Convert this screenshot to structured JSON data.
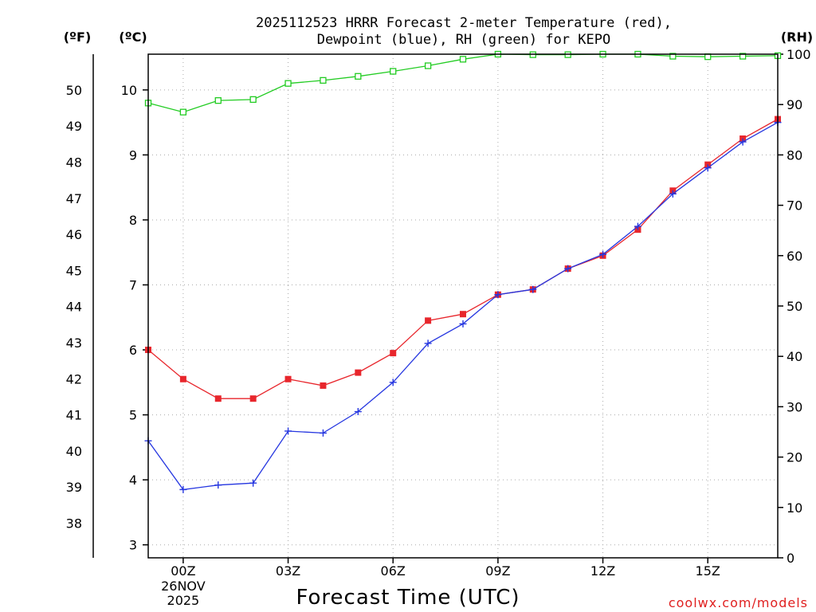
{
  "chart_data": {
    "type": "line",
    "title_line1": "2025112523 HRRR Forecast 2-meter Temperature (red),",
    "title_line2": "Dewpoint (blue), RH (green) for KEPO",
    "xlabel": "Forecast Time (UTC)",
    "watermark": "coolwx.com/models",
    "unit_f": "(ºF)",
    "unit_c": "(ºC)",
    "unit_rh": "(RH)",
    "hours": [
      -1,
      0,
      1,
      2,
      3,
      4,
      5,
      6,
      7,
      8,
      9,
      10,
      11,
      12,
      13,
      14,
      15,
      16,
      17
    ],
    "x_ticks": [
      {
        "hour": 0,
        "label": "00Z",
        "label2": "26NOV",
        "label3": "2025"
      },
      {
        "hour": 3,
        "label": "03Z"
      },
      {
        "hour": 6,
        "label": "06Z"
      },
      {
        "hour": 9,
        "label": "09Z"
      },
      {
        "hour": 12,
        "label": "12Z"
      },
      {
        "hour": 15,
        "label": "15Z"
      }
    ],
    "xlim": [
      -1,
      17
    ],
    "ylim_c": [
      2.8,
      10.55
    ],
    "ylim_rh": [
      0,
      100
    ],
    "c_ticks": [
      3,
      4,
      5,
      6,
      7,
      8,
      9,
      10
    ],
    "f_ticks": [
      38,
      39,
      40,
      41,
      42,
      43,
      44,
      45,
      46,
      47,
      48,
      49,
      50
    ],
    "rh_ticks": [
      0,
      10,
      20,
      30,
      40,
      50,
      60,
      70,
      80,
      90,
      100
    ],
    "series": [
      {
        "name": "Temperature",
        "unit": "C",
        "color": "#e8262c",
        "marker": "filled-square",
        "values": [
          6.0,
          5.55,
          5.25,
          5.25,
          5.55,
          5.45,
          5.65,
          5.95,
          6.45,
          6.55,
          6.85,
          6.93,
          7.25,
          7.45,
          7.85,
          8.45,
          8.85,
          9.25,
          9.55
        ]
      },
      {
        "name": "Dewpoint",
        "unit": "C",
        "color": "#2536e0",
        "marker": "plus",
        "values": [
          4.6,
          3.85,
          3.92,
          3.95,
          4.75,
          4.72,
          5.05,
          5.5,
          6.1,
          6.4,
          6.85,
          6.93,
          7.25,
          7.47,
          7.9,
          8.4,
          8.8,
          9.2,
          9.5
        ]
      },
      {
        "name": "RH",
        "unit": "%",
        "color": "#22cc22",
        "marker": "open-square",
        "values": [
          90.3,
          88.5,
          90.8,
          91.0,
          94.2,
          94.8,
          95.6,
          96.6,
          97.7,
          99.0,
          100.0,
          99.9,
          99.9,
          100.0,
          100.0,
          99.6,
          99.5,
          99.6,
          99.7
        ]
      }
    ]
  }
}
